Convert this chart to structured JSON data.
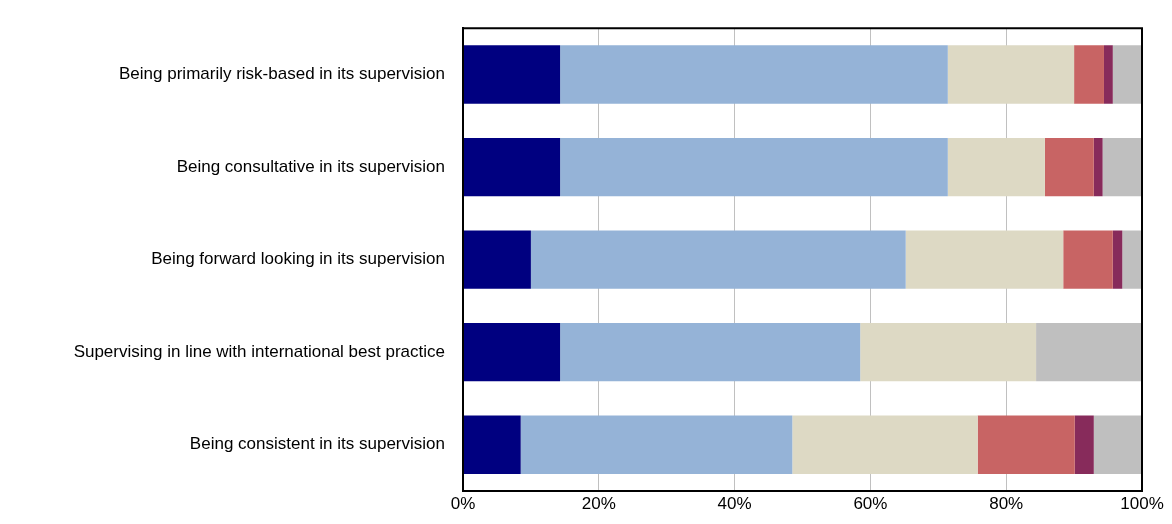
{
  "chart_data": {
    "type": "bar",
    "orientation": "horizontal",
    "stacked": true,
    "categories": [
      "Being primarily risk-based in its supervision",
      "Being consultative in its supervision",
      "Being forward looking in its supervision",
      "Supervising in line with international best practice",
      "Being consistent in its supervision"
    ],
    "series": [
      {
        "color": "#000080",
        "values": [
          14.3,
          14.3,
          10.0,
          14.3,
          8.5
        ]
      },
      {
        "color": "#95b3d7",
        "values": [
          57.1,
          57.1,
          55.2,
          44.2,
          40.0
        ]
      },
      {
        "color": "#ddd9c4",
        "values": [
          18.6,
          14.3,
          23.2,
          25.9,
          27.3
        ]
      },
      {
        "color": "#c86464",
        "values": [
          4.4,
          7.2,
          7.3,
          0,
          14.3
        ]
      },
      {
        "color": "#872b5b",
        "values": [
          1.3,
          1.3,
          1.4,
          0,
          2.8
        ]
      },
      {
        "color": "#bfbfbf",
        "values": [
          4.3,
          5.8,
          2.9,
          15.6,
          7.1
        ]
      }
    ],
    "xlim": [
      0,
      100
    ],
    "xticks": [
      {
        "value": 0,
        "label": "0%"
      },
      {
        "value": 20,
        "label": "20%"
      },
      {
        "value": 40,
        "label": "40%"
      },
      {
        "value": 60,
        "label": "60%"
      },
      {
        "value": 80,
        "label": "80%"
      },
      {
        "value": 100,
        "label": "100%"
      }
    ],
    "grid": "x",
    "legend": false
  }
}
